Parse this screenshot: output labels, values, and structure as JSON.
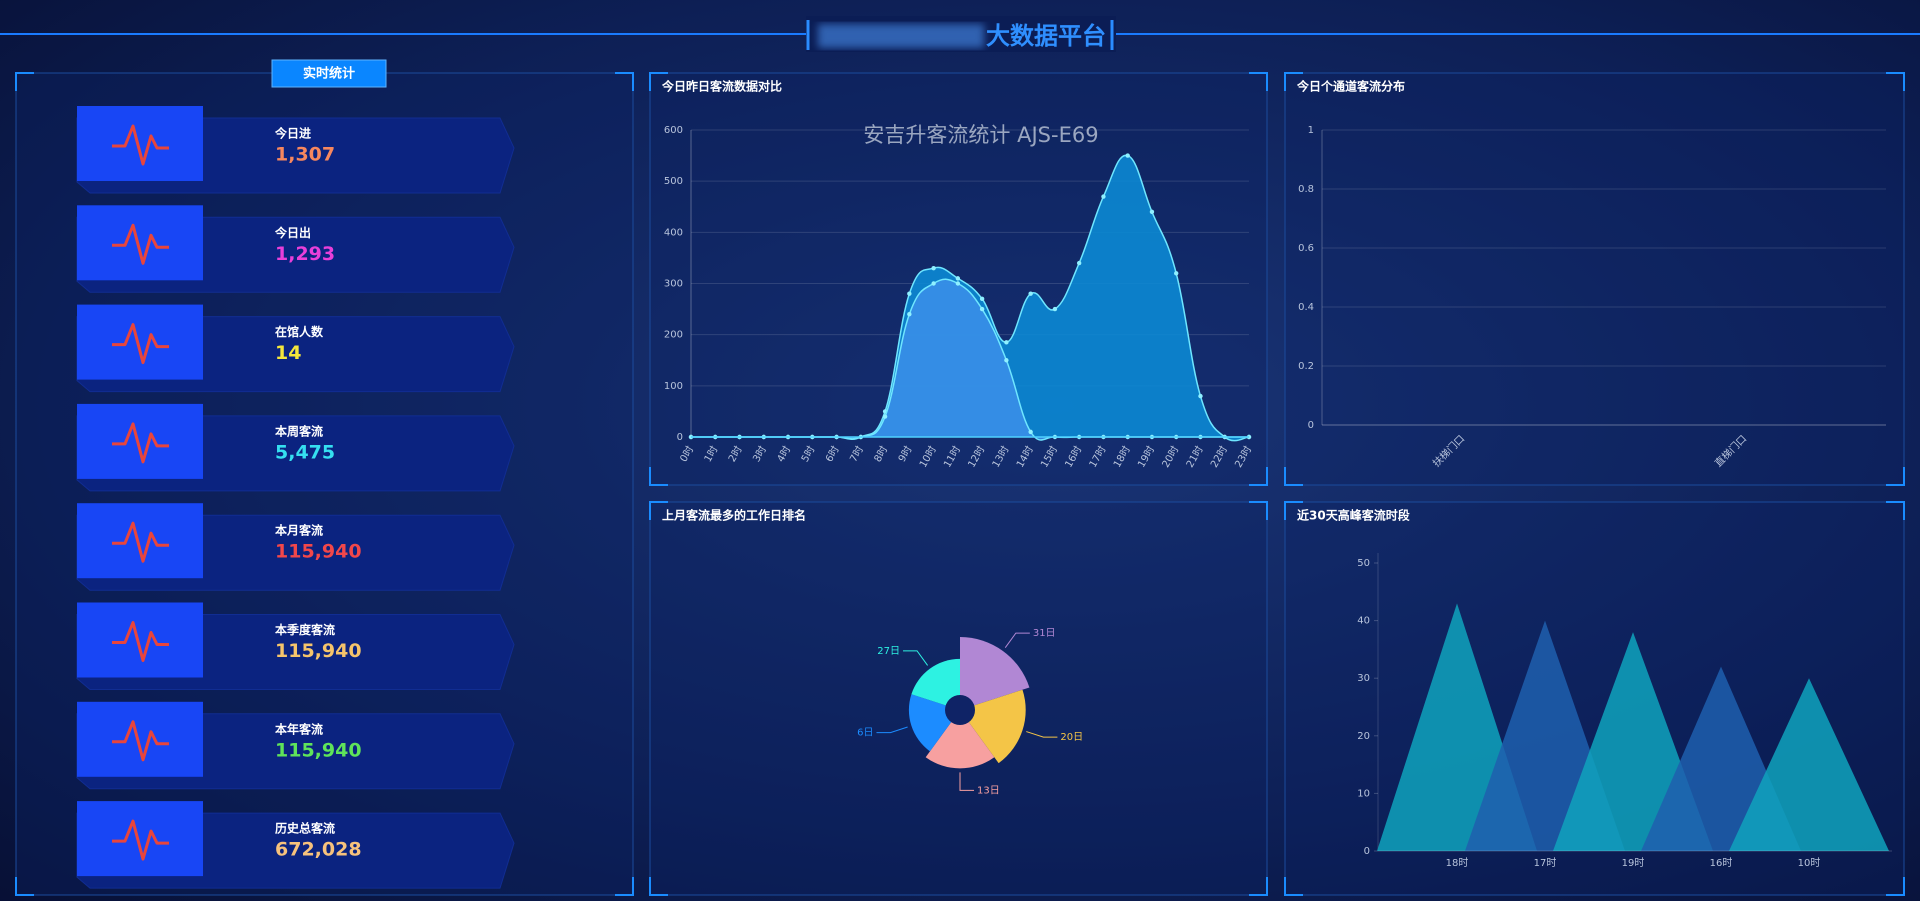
{
  "header": {
    "title": "大数据平台"
  },
  "stats": {
    "button": "实时统计",
    "items": [
      {
        "label": "今日进",
        "value": "1,307",
        "color": "#f7875e"
      },
      {
        "label": "今日出",
        "value": "1,293",
        "color": "#e93fd9"
      },
      {
        "label": "在馆人数",
        "value": "14",
        "color": "#f4e63c"
      },
      {
        "label": "本周客流",
        "value": "5,475",
        "color": "#35dff0"
      },
      {
        "label": "本月客流",
        "value": "115,940",
        "color": "#f2474a"
      },
      {
        "label": "本季度客流",
        "value": "115,940",
        "color": "#f5c46b"
      },
      {
        "label": "本年客流",
        "value": "115,940",
        "color": "#5fe35a"
      },
      {
        "label": "历史总客流",
        "value": "672,028",
        "color": "#f7c27c"
      }
    ]
  },
  "chart_data": [
    {
      "type": "area",
      "title": "今日昨日客流数据对比",
      "subtitle": "安吉升客流统计 AJS-E69",
      "categories": [
        "0时",
        "1时",
        "2时",
        "3时",
        "4时",
        "5时",
        "6时",
        "7时",
        "8时",
        "9时",
        "10时",
        "11时",
        "12时",
        "13时",
        "14时",
        "15时",
        "16时",
        "17时",
        "18时",
        "19时",
        "20时",
        "21时",
        "22时",
        "23时"
      ],
      "series": [
        {
          "color": "#0b8bd6",
          "values": [
            0,
            0,
            0,
            0,
            0,
            0,
            0,
            0,
            50,
            280,
            330,
            310,
            270,
            185,
            280,
            250,
            340,
            470,
            550,
            440,
            320,
            80,
            0,
            0
          ]
        },
        {
          "color": "#3a8fe8",
          "values": [
            0,
            0,
            0,
            0,
            0,
            0,
            0,
            0,
            40,
            240,
            300,
            300,
            250,
            150,
            10,
            0,
            0,
            0,
            0,
            0,
            0,
            0,
            0,
            0
          ]
        }
      ],
      "ylim": [
        0,
        600
      ],
      "yticks": [
        0,
        100,
        200,
        300,
        400,
        500,
        600
      ],
      "grid": true
    },
    {
      "type": "bar",
      "title": "今日个通道客流分布",
      "categories": [
        "扶梯门口",
        "直梯门口"
      ],
      "values": [
        0,
        0
      ],
      "color": "#1e90ff",
      "ylim": [
        0,
        1
      ],
      "yticks": [
        0,
        0.2,
        0.4,
        0.6,
        0.8,
        1
      ],
      "grid": true
    },
    {
      "type": "pie",
      "title": "上月客流最多的工作日排名",
      "categories": [
        "31日",
        "20日",
        "13日",
        "6日",
        "27日"
      ],
      "values": [
        10,
        9,
        8,
        7,
        7
      ],
      "colors": [
        "#b187d4",
        "#f4c547",
        "#f7a0a0",
        "#1c8cff",
        "#2df2e2"
      ]
    },
    {
      "type": "pictorial",
      "title": "近30天高峰客流时段",
      "categories": [
        "18时",
        "17时",
        "19时",
        "16时",
        "10时"
      ],
      "values": [
        43,
        40,
        38,
        32,
        30
      ],
      "colors": [
        "#0fa3bd",
        "#1f5fae"
      ],
      "ylim": [
        0,
        50
      ],
      "yticks": [
        0,
        10,
        20,
        30,
        40,
        50
      ]
    }
  ]
}
